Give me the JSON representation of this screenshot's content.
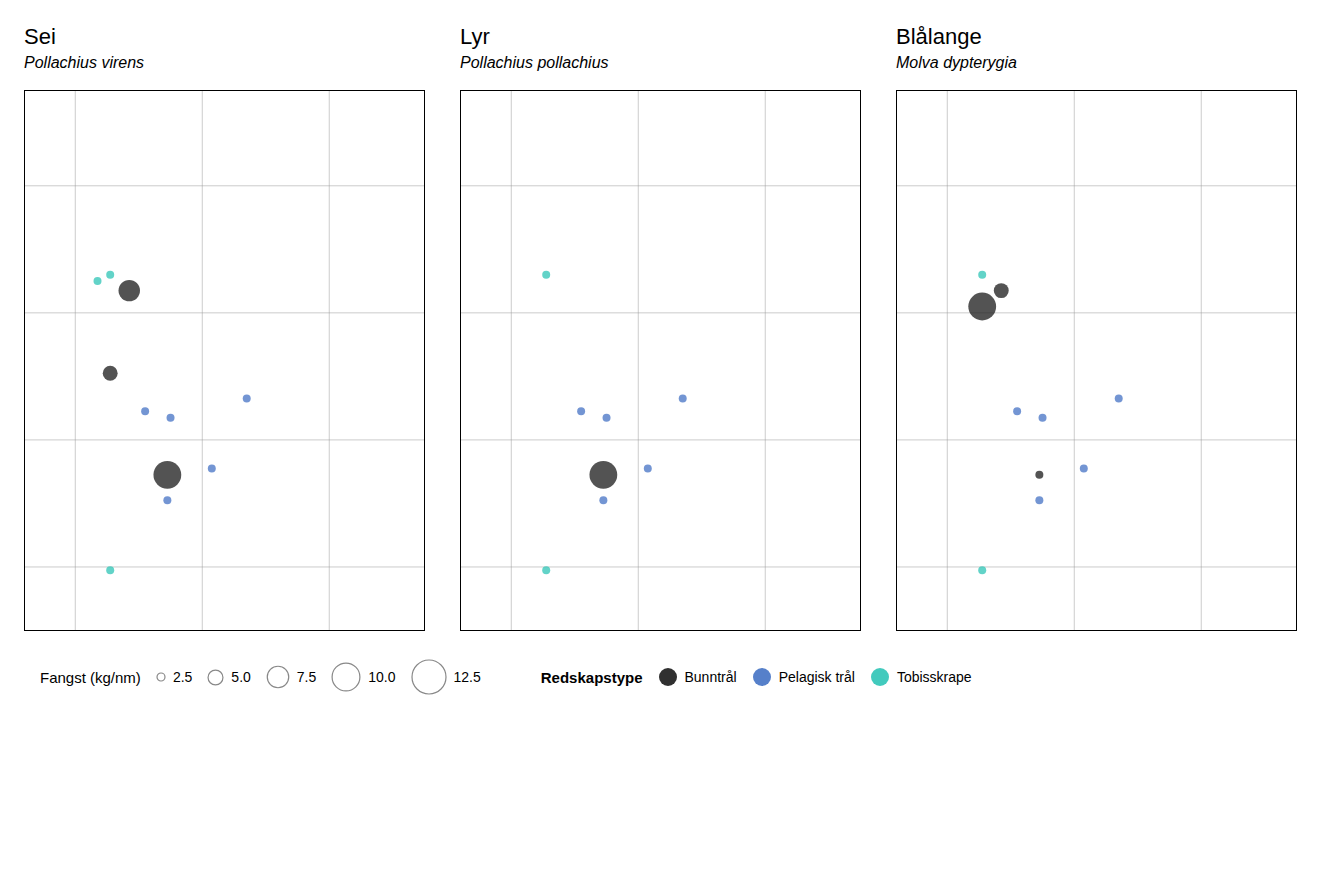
{
  "chart_data": [
    {
      "type": "scatter",
      "title": "Sei",
      "subtitle": "Pollachius virens",
      "xlim": [
        3.2,
        9.5
      ],
      "ylim": [
        57.0,
        65.5
      ],
      "xticks": [
        4,
        6,
        8
      ],
      "yticks": [
        58,
        60,
        62,
        64
      ],
      "grid": true,
      "tick_labels": false,
      "series": [
        {
          "name": "Bunntrål",
          "color": "#1a1a1a",
          "x": [
            4.85,
            4.55,
            5.45
          ],
          "y": [
            62.35,
            61.05,
            59.45
          ],
          "size": [
            7.5,
            5.0,
            10.0
          ]
        },
        {
          "name": "Pelagisk trål",
          "color": "#4472c4",
          "x": [
            5.1,
            5.5,
            6.7,
            6.15,
            5.45
          ],
          "y": [
            60.45,
            60.35,
            60.65,
            59.55,
            59.05
          ],
          "size": [
            2.5,
            2.5,
            2.5,
            2.5,
            2.5
          ]
        },
        {
          "name": "Tobisskrape",
          "color": "#2ec4b6",
          "x": [
            4.55,
            4.35,
            4.55
          ],
          "y": [
            62.6,
            62.5,
            57.95
          ],
          "size": [
            2.5,
            2.5,
            2.5
          ]
        }
      ]
    },
    {
      "type": "scatter",
      "title": "Lyr",
      "subtitle": "Pollachius pollachius",
      "xlim": [
        3.2,
        9.5
      ],
      "ylim": [
        57.0,
        65.5
      ],
      "xticks": [
        4,
        6,
        8
      ],
      "yticks": [
        58,
        60,
        62,
        64
      ],
      "grid": true,
      "tick_labels": false,
      "series": [
        {
          "name": "Bunntrål",
          "color": "#1a1a1a",
          "x": [
            5.45
          ],
          "y": [
            59.45
          ],
          "size": [
            10.0
          ]
        },
        {
          "name": "Pelagisk trål",
          "color": "#4472c4",
          "x": [
            5.1,
            5.5,
            6.7,
            6.15,
            5.45
          ],
          "y": [
            60.45,
            60.35,
            60.65,
            59.55,
            59.05
          ],
          "size": [
            2.5,
            2.5,
            2.5,
            2.5,
            2.5
          ]
        },
        {
          "name": "Tobisskrape",
          "color": "#2ec4b6",
          "x": [
            4.55,
            4.55
          ],
          "y": [
            62.6,
            57.95
          ],
          "size": [
            2.5,
            2.5
          ]
        }
      ]
    },
    {
      "type": "scatter",
      "title": "Blålange",
      "subtitle": "Molva dypterygia",
      "xlim": [
        3.2,
        9.5
      ],
      "ylim": [
        57.0,
        65.5
      ],
      "xticks": [
        4,
        6,
        8
      ],
      "yticks": [
        58,
        60,
        62,
        64
      ],
      "grid": true,
      "tick_labels": false,
      "series": [
        {
          "name": "Bunntrål",
          "color": "#1a1a1a",
          "x": [
            4.85,
            4.55,
            5.45
          ],
          "y": [
            62.35,
            62.1,
            59.45
          ],
          "size": [
            5.0,
            10.0,
            2.5
          ]
        },
        {
          "name": "Pelagisk trål",
          "color": "#4472c4",
          "x": [
            5.1,
            5.5,
            6.7,
            6.15,
            5.45
          ],
          "y": [
            60.45,
            60.35,
            60.65,
            59.55,
            59.05
          ],
          "size": [
            2.5,
            2.5,
            2.5,
            2.5,
            2.5
          ]
        },
        {
          "name": "Tobisskrape",
          "color": "#2ec4b6",
          "x": [
            4.55,
            4.55
          ],
          "y": [
            62.6,
            57.95
          ],
          "size": [
            2.5,
            2.5
          ]
        }
      ]
    }
  ],
  "size_legend": {
    "label": "Fangst (kg/nm)",
    "values": [
      2.5,
      {
        "value": 5.0,
        "label": "5.0"
      },
      7.5,
      {
        "value": 10.0,
        "label": "10.0"
      },
      12.5
    ]
  },
  "color_legend": {
    "label": "Redskapstype"
  }
}
